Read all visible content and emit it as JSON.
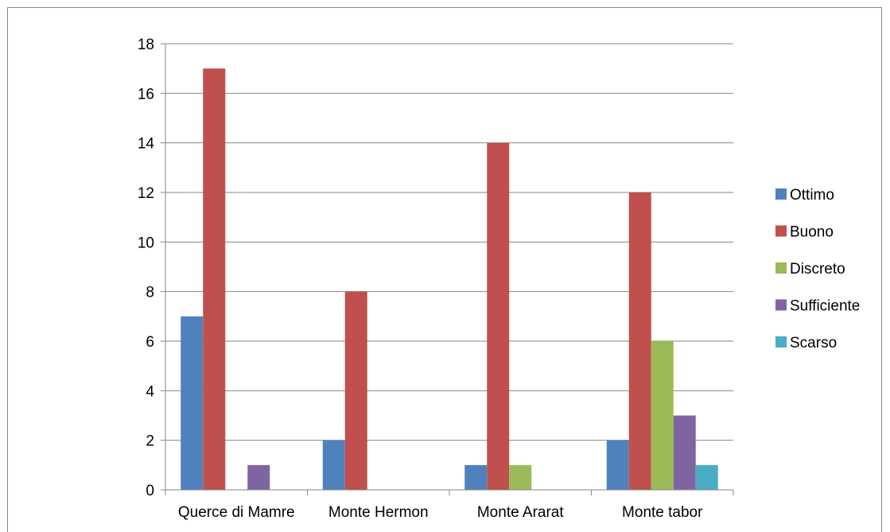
{
  "chart_data": {
    "type": "bar",
    "title": "",
    "xlabel": "",
    "ylabel": "",
    "categories": [
      "Querce di Mamre",
      "Monte Hermon",
      "Monte Ararat",
      "Monte tabor"
    ],
    "series": [
      {
        "name": "Ottimo",
        "color": "#4F81BD",
        "values": [
          7,
          2,
          1,
          2
        ]
      },
      {
        "name": "Buono",
        "color": "#C0504D",
        "values": [
          17,
          8,
          14,
          12
        ]
      },
      {
        "name": "Discreto",
        "color": "#9BBB59",
        "values": [
          0,
          0,
          1,
          6
        ]
      },
      {
        "name": "Sufficiente",
        "color": "#8064A2",
        "values": [
          1,
          0,
          0,
          3
        ]
      },
      {
        "name": "Scarso",
        "color": "#4BACC6",
        "values": [
          0,
          0,
          0,
          1
        ]
      }
    ],
    "ylim": [
      0,
      18
    ],
    "yticks": [
      0,
      2,
      4,
      6,
      8,
      10,
      12,
      14,
      16,
      18
    ],
    "grid": true,
    "legend": "right"
  }
}
